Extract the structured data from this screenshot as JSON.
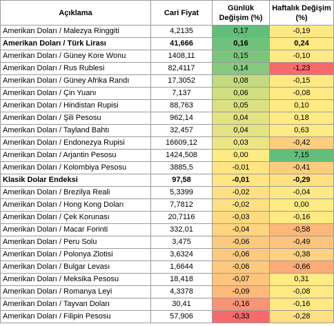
{
  "headers": {
    "description": "Açıklama",
    "price": "Cari Fiyat",
    "daily": "Günlük Değişim (%)",
    "weekly": "Haftalık Değişim (%)"
  },
  "rows": [
    {
      "description": "Amerikan Doları / Malezya Ringgiti",
      "price": "4,2135",
      "daily": "0,17",
      "weekly": "-0,19",
      "daily_color": "#63be7b",
      "weekly_color": "#fee883",
      "bold": false
    },
    {
      "description": "Amerikan Doları / Türk Lirası",
      "price": "41,666",
      "daily": "0,16",
      "weekly": "0,24",
      "daily_color": "#6fc27c",
      "weekly_color": "#ffeb84",
      "bold": true
    },
    {
      "description": "Amerikan Doları / Güney Kore Wonu",
      "price": "1408,11",
      "daily": "0,15",
      "weekly": "-0,10",
      "daily_color": "#7bc57d",
      "weekly_color": "#feea84",
      "bold": false
    },
    {
      "description": "Amerikan Doları / Rus Rublesi",
      "price": "82,4117",
      "daily": "0,14",
      "weekly": "-1,23",
      "daily_color": "#87c97e",
      "weekly_color": "#f8696b",
      "bold": false
    },
    {
      "description": "Amerikan Doları / Güney Afrika Randı",
      "price": "17,3052",
      "daily": "0,08",
      "weekly": "-0,15",
      "daily_color": "#c4da80",
      "weekly_color": "#fee983",
      "bold": false
    },
    {
      "description": "Amerikan Doları / Çin Yuanı",
      "price": "7,137",
      "daily": "0,06",
      "weekly": "-0,08",
      "daily_color": "#d1de81",
      "weekly_color": "#feea84",
      "bold": false
    },
    {
      "description": "Amerikan Doları / Hindistan Rupisi",
      "price": "88,763",
      "daily": "0,05",
      "weekly": "0,10",
      "daily_color": "#dbe182",
      "weekly_color": "#ffeb84",
      "bold": false
    },
    {
      "description": "Amerikan Doları / Şili Pesosu",
      "price": "962,14",
      "daily": "0,04",
      "weekly": "0,18",
      "daily_color": "#e3e382",
      "weekly_color": "#ffeb84",
      "bold": false
    },
    {
      "description": "Amerikan Doları / Tayland Bahtı",
      "price": "32,457",
      "daily": "0,04",
      "weekly": "0,63",
      "daily_color": "#e3e382",
      "weekly_color": "#ffeb84",
      "bold": false
    },
    {
      "description": "Amerikan Doları / Endonezya Rupisi",
      "price": "16609,12",
      "daily": "0,03",
      "weekly": "-0,42",
      "daily_color": "#ebe683",
      "weekly_color": "#fdcd7e",
      "bold": false
    },
    {
      "description": "Amerikan Doları / Arjantin Pesosu",
      "price": "1424,508",
      "daily": "0,00",
      "weekly": "7,15",
      "daily_color": "#ffeb84",
      "weekly_color": "#63be7b",
      "bold": false
    },
    {
      "description": "Amerikan Doları / Kolombiya Pesosu",
      "price": "3885,5",
      "daily": "-0,01",
      "weekly": "-0,41",
      "daily_color": "#ffe583",
      "weekly_color": "#fdcd7e",
      "bold": false
    },
    {
      "description": "Klasik Dolar Endeksi",
      "price": "97,58",
      "daily": "-0,01",
      "weekly": "-0,29",
      "daily_color": "#ffe583",
      "weekly_color": "#fee081",
      "bold": true
    },
    {
      "description": "Amerikan Doları / Brezilya Reali",
      "price": "5,3399",
      "daily": "-0,02",
      "weekly": "-0,04",
      "daily_color": "#fee082",
      "weekly_color": "#feea84",
      "bold": false
    },
    {
      "description": "Amerikan Doları / Hong Kong Doları",
      "price": "7,7812",
      "daily": "-0,02",
      "weekly": "0,00",
      "daily_color": "#fee082",
      "weekly_color": "#ffeb84",
      "bold": false
    },
    {
      "description": "Amerikan Doları / Çek Korunası",
      "price": "20,7116",
      "daily": "-0,03",
      "weekly": "-0,16",
      "daily_color": "#fedb81",
      "weekly_color": "#fee983",
      "bold": false
    },
    {
      "description": "Amerikan Doları / Macar Forinti",
      "price": "332,01",
      "daily": "-0,04",
      "weekly": "-0,58",
      "daily_color": "#fdd57f",
      "weekly_color": "#fcb77a",
      "bold": false
    },
    {
      "description": "Amerikan Doları / Peru Solu",
      "price": "3,475",
      "daily": "-0,06",
      "weekly": "-0,49",
      "daily_color": "#fdca7d",
      "weekly_color": "#fcc37c",
      "bold": false
    },
    {
      "description": "Amerikan Doları / Polonya Zlotisi",
      "price": "3,6324",
      "daily": "-0,06",
      "weekly": "-0,38",
      "daily_color": "#fdca7d",
      "weekly_color": "#fdd17f",
      "bold": false
    },
    {
      "description": "Amerikan Doları / Bulgar Levası",
      "price": "1,6644",
      "daily": "-0,06",
      "weekly": "-0,66",
      "daily_color": "#fdca7d",
      "weekly_color": "#fbab78",
      "bold": false
    },
    {
      "description": "Amerikan Doları / Meksika Pesosu",
      "price": "18,418",
      "daily": "-0,07",
      "weekly": "0,31",
      "daily_color": "#fcc47c",
      "weekly_color": "#ffeb84",
      "bold": false
    },
    {
      "description": "Amerikan Doları / Romanya Leyi",
      "price": "4,3378",
      "daily": "-0,09",
      "weekly": "-0,08",
      "daily_color": "#fcb97a",
      "weekly_color": "#feea84",
      "bold": false
    },
    {
      "description": "Amerikan Doları /  Tayvan Doları",
      "price": "30,41",
      "daily": "-0,16",
      "weekly": "-0,16",
      "daily_color": "#fa9274",
      "weekly_color": "#fee983",
      "bold": false
    },
    {
      "description": "Amerikan Doları / Filipin Pesosu",
      "price": "57,906",
      "daily": "-0,33",
      "weekly": "-0,28",
      "daily_color": "#f8696b",
      "weekly_color": "#fee081",
      "bold": false
    }
  ]
}
